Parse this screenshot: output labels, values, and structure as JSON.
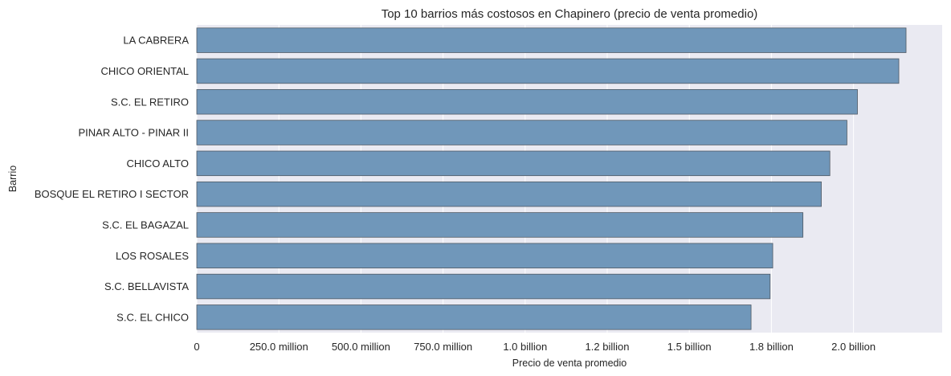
{
  "chart_data": {
    "type": "bar",
    "orientation": "horizontal",
    "title": "Top 10 barrios más costosos en Chapinero (precio de venta promedio)",
    "xlabel": "Precio de venta promedio",
    "ylabel": "Barrio",
    "categories": [
      "LA CABRERA",
      "CHICO ORIENTAL",
      "S.C. EL RETIRO",
      "PINAR ALTO - PINAR II",
      "CHICO ALTO",
      "BOSQUE EL RETIRO I SECTOR",
      "S.C. EL BAGAZAL",
      "LOS ROSALES",
      "S.C. BELLAVISTA",
      "S.C. EL CHICO"
    ],
    "values": [
      2160000000,
      2138000000,
      2012000000,
      1980000000,
      1928000000,
      1902000000,
      1846000000,
      1754000000,
      1746000000,
      1688000000
    ],
    "xlim": [
      0,
      2270000000
    ],
    "xticks": [
      0,
      250000000,
      500000000,
      750000000,
      1000000000,
      1250000000,
      1500000000,
      1750000000,
      2000000000
    ],
    "xtick_labels": [
      "0",
      "250.0 million",
      "500.0 million",
      "750.0 million",
      "1.0 billion",
      "1.2 billion",
      "1.5 billion",
      "1.8 billion",
      "2.0 billion"
    ],
    "grid": true,
    "colors": {
      "bar": "#7097ba",
      "bar_edge": "#505a64",
      "plot_bg": "#eaeaf2",
      "grid": "#ffffff"
    }
  }
}
